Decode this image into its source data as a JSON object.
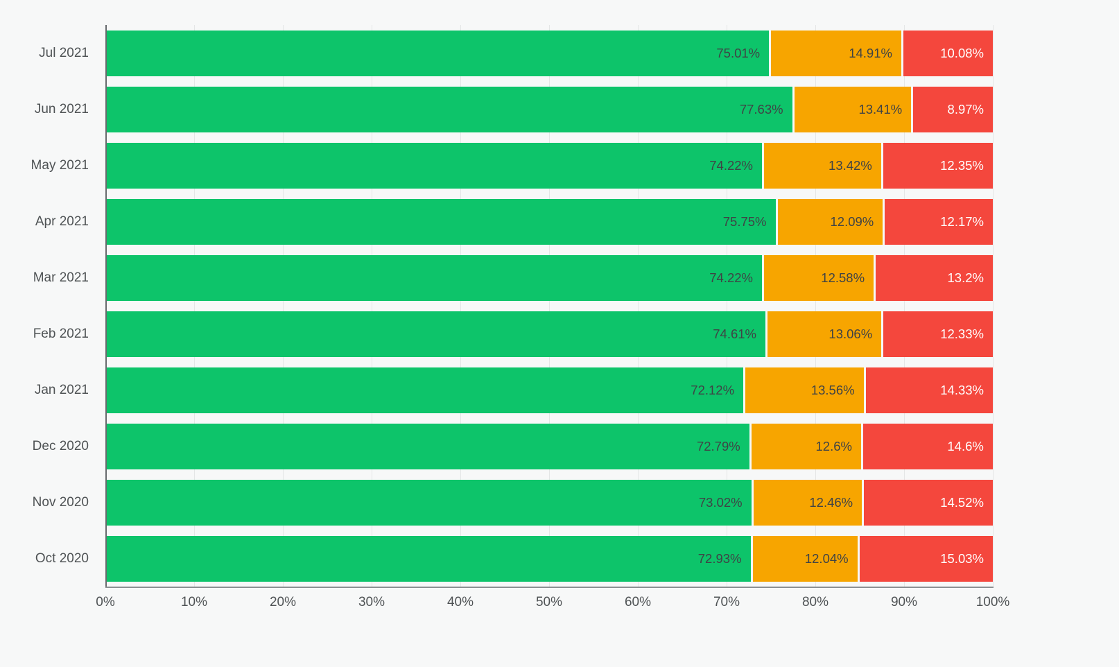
{
  "chart_data": {
    "type": "bar",
    "orientation": "horizontal",
    "stacked": true,
    "title": "",
    "xlabel": "",
    "ylabel": "",
    "xlim": [
      0,
      100
    ],
    "grid": true,
    "legend": "none",
    "categories": [
      "Jul 2021",
      "Jun 2021",
      "May 2021",
      "Apr 2021",
      "Mar 2021",
      "Feb 2021",
      "Jan 2021",
      "Dec 2020",
      "Nov 2020",
      "Oct 2020"
    ],
    "x_tick_labels": [
      "0%",
      "10%",
      "20%",
      "30%",
      "40%",
      "50%",
      "60%",
      "70%",
      "80%",
      "90%",
      "100%"
    ],
    "series": [
      {
        "name": "green-share",
        "color": "#0dc46a",
        "label_color": "#3f4345",
        "values": [
          75.01,
          77.63,
          74.22,
          75.75,
          74.22,
          74.61,
          72.12,
          72.79,
          73.02,
          72.93
        ],
        "labels": [
          "75.01%",
          "77.63%",
          "74.22%",
          "75.75%",
          "74.22%",
          "74.61%",
          "72.12%",
          "72.79%",
          "73.02%",
          "72.93%"
        ]
      },
      {
        "name": "orange-share",
        "color": "#f7a500",
        "label_color": "#3f4345",
        "values": [
          14.91,
          13.41,
          13.42,
          12.09,
          12.58,
          13.06,
          13.56,
          12.6,
          12.46,
          12.04
        ],
        "labels": [
          "14.91%",
          "13.41%",
          "13.42%",
          "12.09%",
          "12.58%",
          "13.06%",
          "13.56%",
          "12.6%",
          "12.46%",
          "12.04%"
        ]
      },
      {
        "name": "red-share",
        "color": "#f4473d",
        "label_color": "#ffffff",
        "values": [
          10.08,
          8.97,
          12.35,
          12.17,
          13.2,
          12.33,
          14.33,
          14.6,
          14.52,
          15.03
        ],
        "labels": [
          "10.08%",
          "8.97%",
          "12.35%",
          "12.17%",
          "13.2%",
          "12.33%",
          "14.33%",
          "14.6%",
          "14.52%",
          "15.03%"
        ]
      }
    ]
  },
  "layout_colors": {
    "background": "#f7f8f8",
    "gridline": "#e4e6e6",
    "axis": "#666a6d"
  }
}
